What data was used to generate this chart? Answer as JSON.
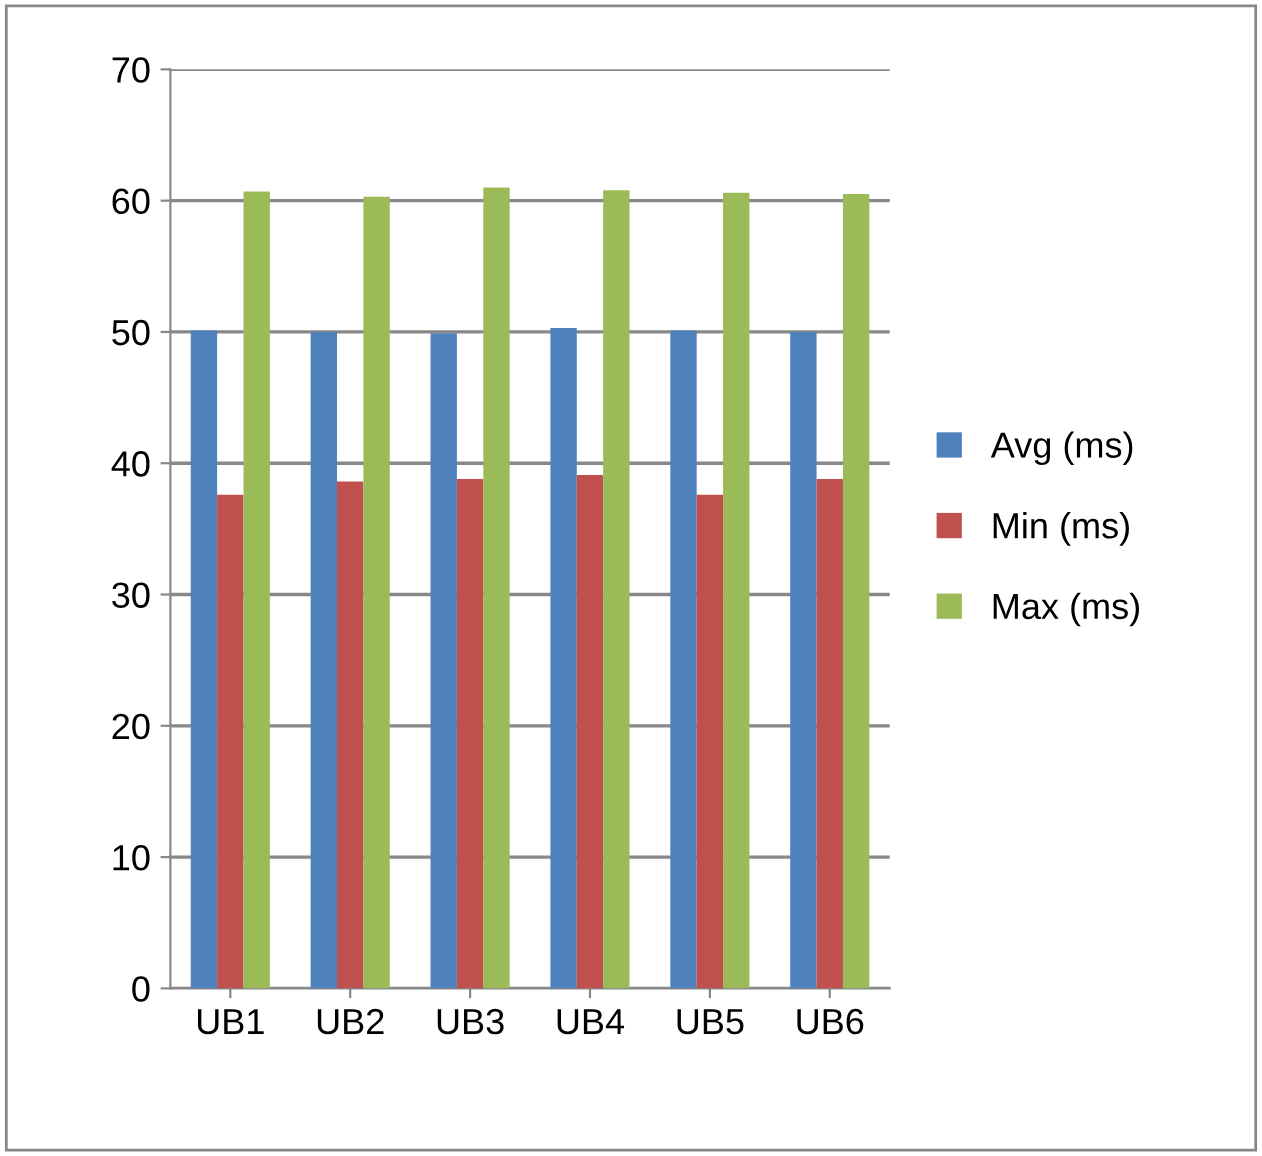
{
  "chart_data": {
    "type": "bar",
    "categories": [
      "UB1",
      "UB2",
      "UB3",
      "UB4",
      "UB5",
      "UB6"
    ],
    "series": [
      {
        "name": "Avg (ms)",
        "color": "#4f81bd",
        "values": [
          50.1,
          50.0,
          49.9,
          50.3,
          50.1,
          50.0
        ]
      },
      {
        "name": "Min (ms)",
        "color": "#c0504d",
        "values": [
          37.6,
          38.6,
          38.8,
          39.1,
          37.6,
          38.8
        ]
      },
      {
        "name": "Max (ms)",
        "color": "#9bbb59",
        "values": [
          60.7,
          60.3,
          61.0,
          60.8,
          60.6,
          60.5
        ]
      }
    ],
    "ylim": [
      0,
      70
    ],
    "yticks": [
      0,
      10,
      20,
      30,
      40,
      50,
      60,
      70
    ],
    "grid": "y",
    "legend": "right"
  }
}
